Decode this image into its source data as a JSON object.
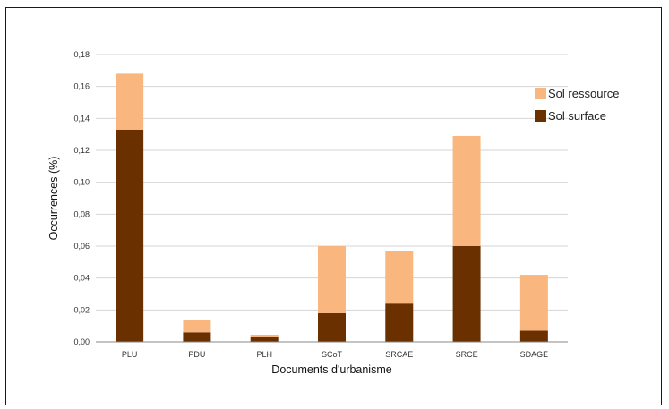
{
  "chart_data": {
    "type": "bar",
    "stacked": true,
    "categories": [
      "PLU",
      "PDU",
      "PLH",
      "SCoT",
      "SRCAE",
      "SRCE",
      "SDAGE"
    ],
    "series": [
      {
        "name": "Sol surface",
        "color": "#6b3000",
        "values": [
          0.133,
          0.006,
          0.003,
          0.018,
          0.024,
          0.06,
          0.007
        ]
      },
      {
        "name": "Sol ressource",
        "color": "#f9b67e",
        "values": [
          0.035,
          0.0075,
          0.0015,
          0.042,
          0.033,
          0.069,
          0.035
        ]
      }
    ],
    "xlabel": "Documents d'urbanisme",
    "ylabel": "Occurrences (%)",
    "ylim": [
      0,
      0.18
    ],
    "yticks": [
      "0,00",
      "0,02",
      "0,04",
      "0,06",
      "0,08",
      "0,10",
      "0,12",
      "0,14",
      "0,16",
      "0,18"
    ],
    "grid": true,
    "legend_position": "right",
    "legend_order": [
      "Sol ressource",
      "Sol surface"
    ]
  }
}
